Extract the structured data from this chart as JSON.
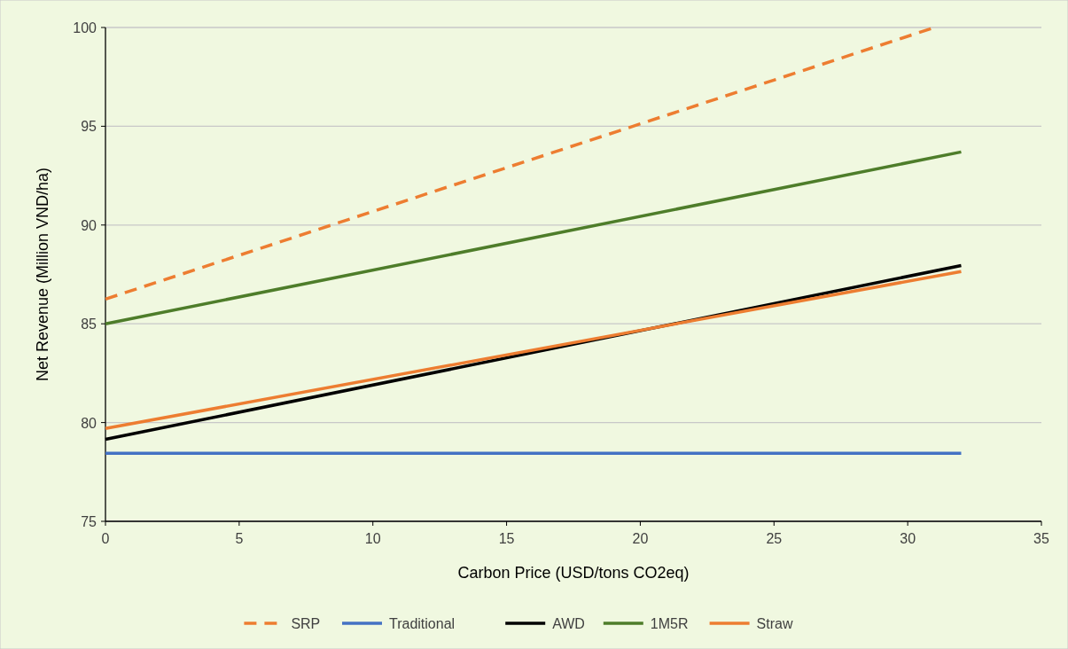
{
  "chart_data": {
    "type": "line",
    "xlabel": "Carbon Price (USD/tons CO2eq)",
    "ylabel": "Net Revenue (Million VND/ha)",
    "xlim": [
      0,
      35
    ],
    "xticks": [
      0,
      5,
      10,
      15,
      20,
      25,
      30,
      35
    ],
    "ylim": [
      75,
      100
    ],
    "yticks": [
      75,
      80,
      85,
      90,
      95,
      100
    ],
    "grid": "y",
    "legend": "bottom",
    "series": [
      {
        "name": "SRP",
        "color": "#ed7d31",
        "line_style": "dashed",
        "x": [
          0,
          31
        ],
        "values": [
          86.25,
          100
        ]
      },
      {
        "name": "Traditional",
        "color": "#4472c4",
        "x": [
          0,
          32
        ],
        "values": [
          78.45,
          78.45
        ]
      },
      {
        "name": "AWD",
        "color": "#000000",
        "x": [
          0,
          32
        ],
        "values": [
          79.15,
          87.95
        ]
      },
      {
        "name": "1M5R",
        "color": "#4e7d2a",
        "x": [
          0,
          32
        ],
        "values": [
          85.0,
          93.7
        ]
      },
      {
        "name": "Straw",
        "color": "#ed7d31",
        "x": [
          0,
          32
        ],
        "values": [
          79.7,
          87.65
        ]
      }
    ]
  }
}
